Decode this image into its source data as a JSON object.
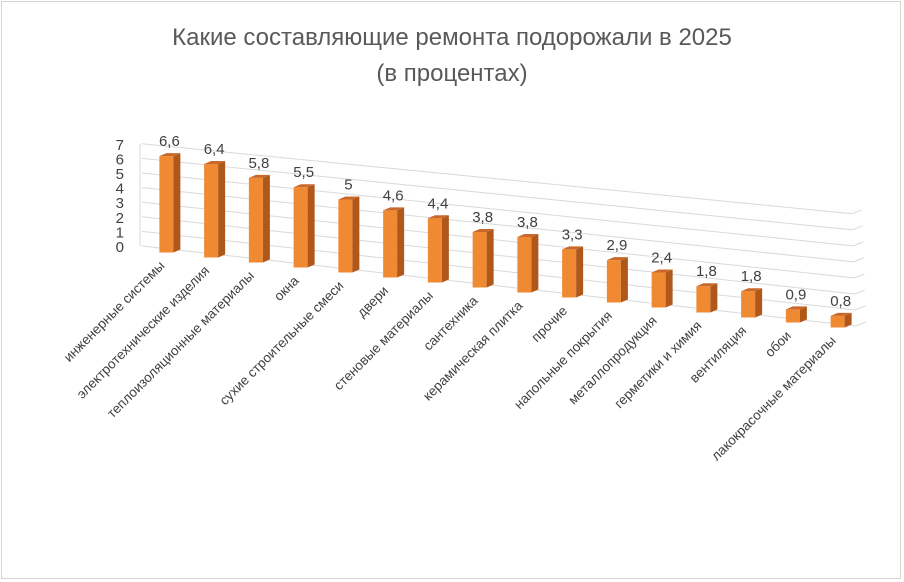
{
  "chart_data": {
    "type": "bar",
    "title_line1": "Какие составляющие ремонта подорожали в 2025",
    "title_line2": "(в процентах)",
    "categories": [
      "инженерные системы",
      "электротехнические изделия",
      "теплоизоляционные материалы",
      "окна",
      "сухие строительные смеси",
      "двери",
      "стеновые материалы",
      "сантехника",
      "керамическая плитка",
      "прочие",
      "напольные покрытия",
      "металлопродукция",
      "герметики и химия",
      "вентиляция",
      "обои",
      "лакокрасочные материалы"
    ],
    "values": [
      6.6,
      6.4,
      5.8,
      5.5,
      5,
      4.6,
      4.4,
      3.8,
      3.8,
      3.3,
      2.9,
      2.4,
      1.8,
      1.8,
      0.9,
      0.8
    ],
    "value_labels": [
      "6,6",
      "6,4",
      "5,8",
      "5,5",
      "5",
      "4,6",
      "4,4",
      "3,8",
      "3,8",
      "3,3",
      "2,9",
      "2,4",
      "1,8",
      "1,8",
      "0,9",
      "0,8"
    ],
    "yticks": [
      "0",
      "1",
      "2",
      "3",
      "4",
      "5",
      "6",
      "7"
    ],
    "ylim": [
      0,
      7
    ],
    "grid": true,
    "legend": "none",
    "bar_colors": {
      "front": "#f08a32",
      "side": "#b0571a",
      "top": "#c8682a"
    },
    "grid_color": "#d9d9d9"
  }
}
